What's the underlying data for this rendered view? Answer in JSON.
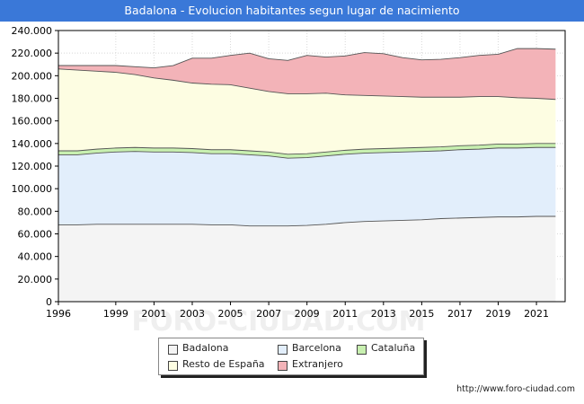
{
  "title": "Badalona - Evolucion habitantes segun lugar de nacimiento",
  "footer_url": "http://www.foro-ciudad.com",
  "watermark": "FORO-CIUDAD.COM",
  "colors": {
    "title_bar": "#3a78d8",
    "Badalona": "#f4f4f4",
    "Barcelona": "#e2eefb",
    "Cataluna": "#c8f0b0",
    "Resto": "#fdfde2",
    "Extranjero": "#f3b3b8"
  },
  "legend": [
    {
      "key": "Badalona",
      "label": "Badalona"
    },
    {
      "key": "Barcelona",
      "label": "Barcelona"
    },
    {
      "key": "Cataluna",
      "label": "Cataluña"
    },
    {
      "key": "Resto",
      "label": "Resto de España"
    },
    {
      "key": "Extranjero",
      "label": "Extranjero"
    }
  ],
  "chart_data": {
    "type": "area",
    "stacked": true,
    "x": [
      1996,
      1997,
      1998,
      1999,
      2000,
      2001,
      2002,
      2003,
      2004,
      2005,
      2006,
      2007,
      2008,
      2009,
      2010,
      2011,
      2012,
      2013,
      2014,
      2015,
      2016,
      2017,
      2018,
      2019,
      2020,
      2021,
      2022
    ],
    "x_ticks": [
      1996,
      1999,
      2001,
      2003,
      2005,
      2007,
      2009,
      2011,
      2013,
      2015,
      2017,
      2019,
      2021
    ],
    "y_ticks": [
      0,
      20000,
      40000,
      60000,
      80000,
      100000,
      120000,
      140000,
      160000,
      180000,
      200000,
      220000,
      240000
    ],
    "y_tick_labels": [
      "0",
      "20.000",
      "40.000",
      "60.000",
      "80.000",
      "100.000",
      "120.000",
      "140.000",
      "160.000",
      "180.000",
      "200.000",
      "220.000",
      "240.000"
    ],
    "ylim": [
      0,
      240000
    ],
    "grid": true,
    "legend_position": "bottom",
    "series": [
      {
        "key": "Badalona",
        "name": "Badalona",
        "values": [
          68000,
          68000,
          68500,
          68500,
          68500,
          68500,
          68500,
          68500,
          68000,
          68000,
          67000,
          67000,
          67000,
          67500,
          68500,
          70000,
          71000,
          71500,
          72000,
          72500,
          73500,
          74000,
          74500,
          75000,
          75000,
          75500,
          75500
        ]
      },
      {
        "key": "Barcelona",
        "name": "Barcelona",
        "values": [
          62000,
          62000,
          63000,
          64000,
          64500,
          64000,
          64000,
          63500,
          63000,
          63000,
          63000,
          62000,
          60000,
          60000,
          60500,
          60500,
          60500,
          60500,
          60500,
          60500,
          60000,
          60500,
          60500,
          61000,
          61000,
          61000,
          61000
        ]
      },
      {
        "key": "Cataluna",
        "name": "Cataluña",
        "values": [
          3500,
          3500,
          3500,
          3500,
          3500,
          3500,
          3500,
          3500,
          3500,
          3500,
          3500,
          3500,
          3500,
          3500,
          3500,
          3500,
          3500,
          3500,
          3500,
          3500,
          3500,
          3500,
          3500,
          3500,
          3500,
          3500,
          3500
        ]
      },
      {
        "key": "Resto",
        "name": "Resto de España",
        "values": [
          72500,
          71500,
          69000,
          67000,
          64500,
          62000,
          60000,
          58000,
          58000,
          57500,
          55500,
          53500,
          53500,
          53000,
          52000,
          49000,
          47500,
          46500,
          45500,
          44500,
          44000,
          43000,
          43000,
          42000,
          41000,
          40000,
          39000
        ]
      },
      {
        "key": "Extranjero",
        "name": "Extranjero",
        "values": [
          3000,
          4000,
          5000,
          6000,
          7000,
          9000,
          13000,
          22000,
          23000,
          26000,
          31000,
          29000,
          29500,
          34000,
          32000,
          34500,
          38000,
          37500,
          34500,
          33000,
          33500,
          35000,
          36500,
          37500,
          43500,
          44000,
          44500
        ]
      }
    ]
  }
}
